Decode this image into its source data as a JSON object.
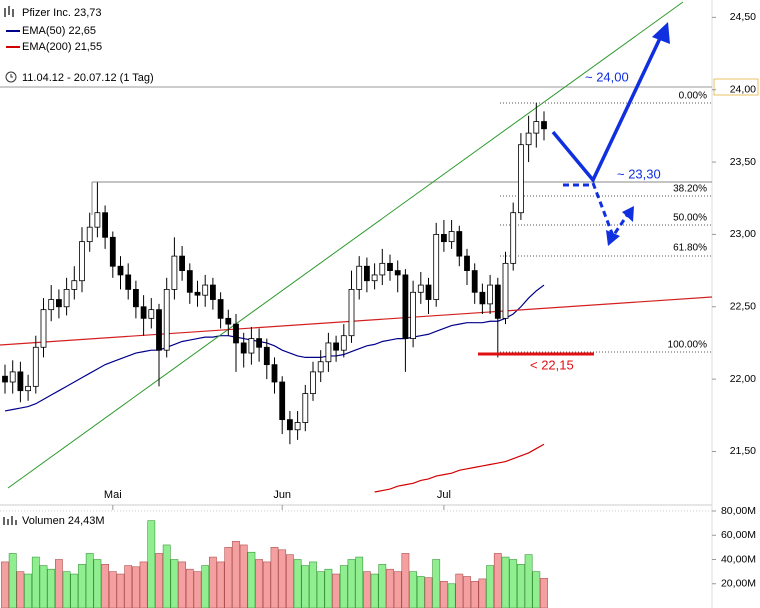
{
  "chart_data": [
    {
      "type": "candlestick",
      "title": "Pfizer Inc. 23,73",
      "subtitle": "11.04.12 - 20.07.12 (1 Tag)",
      "categories": [
        null,
        null,
        null,
        null,
        null,
        null,
        null,
        null,
        null,
        null,
        null,
        null,
        null,
        null,
        "Mai",
        null,
        null,
        null,
        null,
        null,
        null,
        null,
        null,
        null,
        null,
        null,
        null,
        null,
        null,
        null,
        null,
        null,
        null,
        null,
        null,
        null,
        "Jun",
        null,
        null,
        null,
        null,
        null,
        null,
        null,
        null,
        null,
        null,
        null,
        null,
        null,
        null,
        null,
        null,
        null,
        null,
        null,
        null,
        "Jul",
        null,
        null,
        null,
        null,
        null,
        null,
        null,
        null,
        null,
        null,
        null,
        null,
        null
      ],
      "open": [
        22.02,
        21.98,
        22.05,
        21.92,
        21.95,
        22.22,
        22.48,
        22.55,
        22.5,
        22.62,
        22.68,
        22.95,
        23.05,
        23.15,
        22.98,
        22.78,
        22.72,
        22.62,
        22.5,
        22.42,
        22.48,
        22.2,
        22.62,
        22.85,
        22.75,
        22.6,
        22.58,
        22.65,
        22.55,
        22.42,
        22.38,
        22.25,
        22.18,
        22.28,
        22.22,
        22.1,
        21.98,
        21.72,
        21.65,
        21.7,
        21.9,
        22.05,
        22.12,
        22.25,
        22.2,
        22.3,
        22.62,
        22.78,
        22.68,
        22.72,
        22.8,
        22.75,
        22.72,
        22.28,
        22.6,
        22.65,
        22.55,
        23.0,
        22.95,
        23.02,
        22.85,
        22.75,
        22.6,
        22.52,
        22.65,
        22.42,
        22.8,
        23.15,
        23.62,
        23.7,
        23.78
      ],
      "high": [
        22.1,
        22.13,
        22.12,
        22.03,
        22.3,
        22.56,
        22.65,
        22.62,
        22.7,
        22.78,
        23.05,
        23.15,
        23.36,
        23.2,
        23.02,
        22.85,
        22.8,
        22.68,
        22.58,
        22.56,
        22.52,
        22.7,
        22.98,
        22.92,
        22.8,
        22.68,
        22.72,
        22.7,
        22.6,
        22.48,
        22.45,
        22.32,
        22.36,
        22.35,
        22.28,
        22.15,
        22.02,
        21.78,
        21.78,
        21.96,
        22.12,
        22.2,
        22.32,
        22.3,
        22.38,
        22.75,
        22.85,
        22.84,
        22.8,
        22.9,
        22.86,
        22.82,
        22.76,
        22.68,
        22.74,
        22.7,
        23.08,
        23.1,
        23.1,
        23.06,
        22.9,
        22.8,
        22.66,
        22.72,
        22.7,
        22.88,
        23.22,
        23.7,
        23.82,
        23.91,
        23.85
      ],
      "low": [
        21.9,
        21.9,
        21.84,
        21.85,
        21.9,
        22.15,
        22.4,
        22.42,
        22.44,
        22.55,
        22.6,
        22.88,
        22.98,
        22.9,
        22.7,
        22.62,
        22.55,
        22.42,
        22.3,
        22.35,
        21.95,
        22.15,
        22.55,
        22.68,
        22.52,
        22.5,
        22.5,
        22.48,
        22.35,
        22.3,
        22.05,
        22.08,
        22.1,
        22.12,
        22.0,
        21.9,
        21.62,
        21.55,
        21.58,
        21.64,
        21.85,
        21.98,
        22.05,
        22.12,
        22.15,
        22.25,
        22.55,
        22.6,
        22.62,
        22.65,
        22.68,
        22.6,
        22.05,
        22.22,
        22.52,
        22.45,
        22.5,
        22.88,
        22.9,
        22.78,
        22.65,
        22.52,
        22.45,
        22.45,
        22.15,
        22.38,
        22.75,
        23.1,
        23.5,
        23.6,
        23.65
      ],
      "close": [
        21.98,
        22.05,
        21.92,
        21.95,
        22.22,
        22.48,
        22.55,
        22.5,
        22.62,
        22.68,
        22.95,
        23.05,
        23.15,
        22.98,
        22.78,
        22.72,
        22.62,
        22.5,
        22.42,
        22.48,
        22.2,
        22.62,
        22.85,
        22.75,
        22.6,
        22.58,
        22.65,
        22.55,
        22.42,
        22.38,
        22.25,
        22.18,
        22.28,
        22.22,
        22.1,
        21.98,
        21.72,
        21.65,
        21.7,
        21.9,
        22.05,
        22.12,
        22.25,
        22.2,
        22.3,
        22.62,
        22.78,
        22.68,
        22.72,
        22.8,
        22.75,
        22.72,
        22.28,
        22.6,
        22.65,
        22.55,
        23.0,
        22.95,
        23.02,
        22.85,
        22.75,
        22.6,
        22.52,
        22.65,
        22.42,
        22.8,
        23.15,
        23.62,
        23.7,
        23.78,
        23.73
      ],
      "series": [
        {
          "name": "EMA(50) 22,65",
          "color": "#00008b",
          "values": [
            21.78,
            21.79,
            21.8,
            21.81,
            21.83,
            21.86,
            21.89,
            21.92,
            21.95,
            21.98,
            22.01,
            22.04,
            22.07,
            22.1,
            22.12,
            22.14,
            22.16,
            22.18,
            22.19,
            22.2,
            22.2,
            22.22,
            22.24,
            22.26,
            22.27,
            22.28,
            22.29,
            22.29,
            22.3,
            22.3,
            22.29,
            22.28,
            22.27,
            22.26,
            22.25,
            22.23,
            22.2,
            22.18,
            22.16,
            22.15,
            22.15,
            22.15,
            22.16,
            22.16,
            22.17,
            22.19,
            22.21,
            22.23,
            22.24,
            22.26,
            22.27,
            22.28,
            22.28,
            22.29,
            22.3,
            22.31,
            22.33,
            22.35,
            22.37,
            22.38,
            22.39,
            22.39,
            22.39,
            22.4,
            22.4,
            22.42,
            22.45,
            22.5,
            22.56,
            22.61,
            22.65
          ]
        },
        {
          "name": "EMA(200) 21,55",
          "color": "#d40000",
          "values": [
            null,
            null,
            null,
            null,
            null,
            null,
            null,
            null,
            null,
            null,
            null,
            null,
            null,
            null,
            null,
            null,
            null,
            null,
            null,
            null,
            null,
            null,
            null,
            null,
            null,
            null,
            null,
            null,
            null,
            null,
            null,
            null,
            null,
            null,
            null,
            null,
            null,
            null,
            null,
            null,
            null,
            null,
            null,
            null,
            null,
            null,
            null,
            null,
            21.22,
            21.23,
            21.24,
            21.26,
            21.27,
            21.28,
            21.3,
            21.31,
            21.33,
            21.34,
            21.35,
            21.37,
            21.38,
            21.39,
            21.4,
            21.41,
            21.42,
            21.43,
            21.45,
            21.47,
            21.49,
            21.52,
            21.55
          ]
        }
      ],
      "ylim": [
        21.13,
        24.62
      ],
      "yticks": [
        {
          "value": 21.5,
          "label": "21,50"
        },
        {
          "value": 22.0,
          "label": "22,00"
        },
        {
          "value": 22.5,
          "label": "22,50"
        },
        {
          "value": 23.0,
          "label": "23,00"
        },
        {
          "value": 23.5,
          "label": "23,50"
        },
        {
          "value": 24.0,
          "label": "24,00"
        },
        {
          "value": 24.5,
          "label": "24,50"
        }
      ],
      "up_color": "#ffffff",
      "down_color": "#000000",
      "annotations": [
        "~ 24,00",
        "~ 23,30",
        "< 22,15",
        "0.00%",
        "38.20%",
        "50.00%",
        "61.80%",
        "100.00%"
      ]
    },
    {
      "type": "volume",
      "title": "Volumen 24,43M",
      "values": [
        38,
        45,
        30,
        28,
        42,
        35,
        32,
        40,
        30,
        28,
        36,
        45,
        40,
        36,
        30,
        28,
        35,
        34,
        38,
        72,
        45,
        52,
        40,
        38,
        32,
        30,
        35,
        42,
        38,
        50,
        55,
        52,
        46,
        40,
        38,
        50,
        48,
        44,
        40,
        35,
        38,
        30,
        32,
        28,
        35,
        40,
        42,
        30,
        28,
        36,
        32,
        30,
        45,
        30,
        26,
        25,
        40,
        22,
        20,
        28,
        26,
        22,
        24,
        35,
        45,
        42,
        40,
        36,
        44,
        30,
        24.43
      ],
      "ylim": [
        0,
        80
      ],
      "yticks": [
        {
          "value": 20,
          "label": "20,00M"
        },
        {
          "value": 40,
          "label": "40,00M"
        },
        {
          "value": 60,
          "label": "60,00M"
        },
        {
          "value": 80,
          "label": "80,00M"
        }
      ],
      "up_color": "#90ee90",
      "down_color": "#f4a0a0"
    }
  ]
}
